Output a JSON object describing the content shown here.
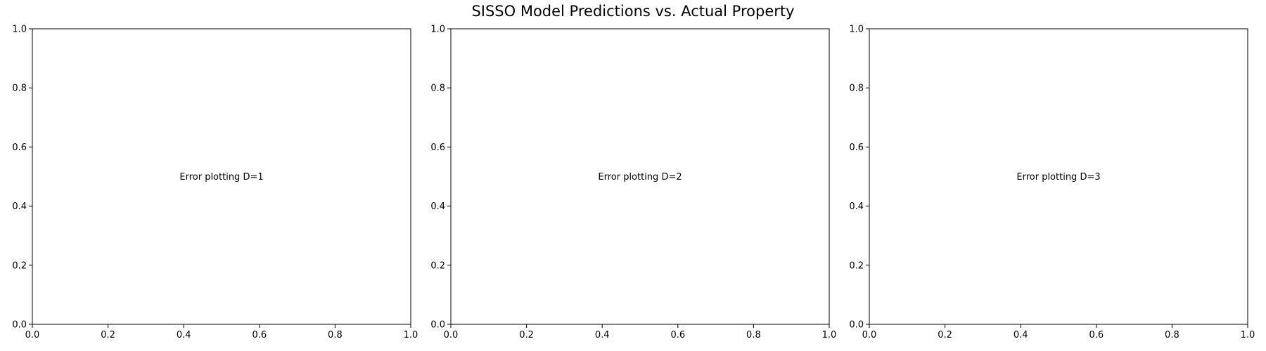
{
  "figure": {
    "suptitle": "SISSO Model Predictions vs. Actual Property"
  },
  "chart_data": [
    {
      "type": "scatter",
      "title": "",
      "xlabel": "",
      "ylabel": "",
      "xlim": [
        0,
        1
      ],
      "ylim": [
        0,
        1
      ],
      "xticks": [
        "0.0",
        "0.2",
        "0.4",
        "0.6",
        "0.8",
        "1.0"
      ],
      "yticks": [
        "0.0",
        "0.2",
        "0.4",
        "0.6",
        "0.8",
        "1.0"
      ],
      "series": [],
      "annotation": "Error plotting D=1",
      "grid": false
    },
    {
      "type": "scatter",
      "title": "",
      "xlabel": "",
      "ylabel": "",
      "xlim": [
        0,
        1
      ],
      "ylim": [
        0,
        1
      ],
      "xticks": [
        "0.0",
        "0.2",
        "0.4",
        "0.6",
        "0.8",
        "1.0"
      ],
      "yticks": [
        "0.0",
        "0.2",
        "0.4",
        "0.6",
        "0.8",
        "1.0"
      ],
      "series": [],
      "annotation": "Error plotting D=2",
      "grid": false
    },
    {
      "type": "scatter",
      "title": "",
      "xlabel": "",
      "ylabel": "",
      "xlim": [
        0,
        1
      ],
      "ylim": [
        0,
        1
      ],
      "xticks": [
        "0.0",
        "0.2",
        "0.4",
        "0.6",
        "0.8",
        "1.0"
      ],
      "yticks": [
        "0.0",
        "0.2",
        "0.4",
        "0.6",
        "0.8",
        "1.0"
      ],
      "series": [],
      "annotation": "Error plotting D=3",
      "grid": false
    }
  ]
}
